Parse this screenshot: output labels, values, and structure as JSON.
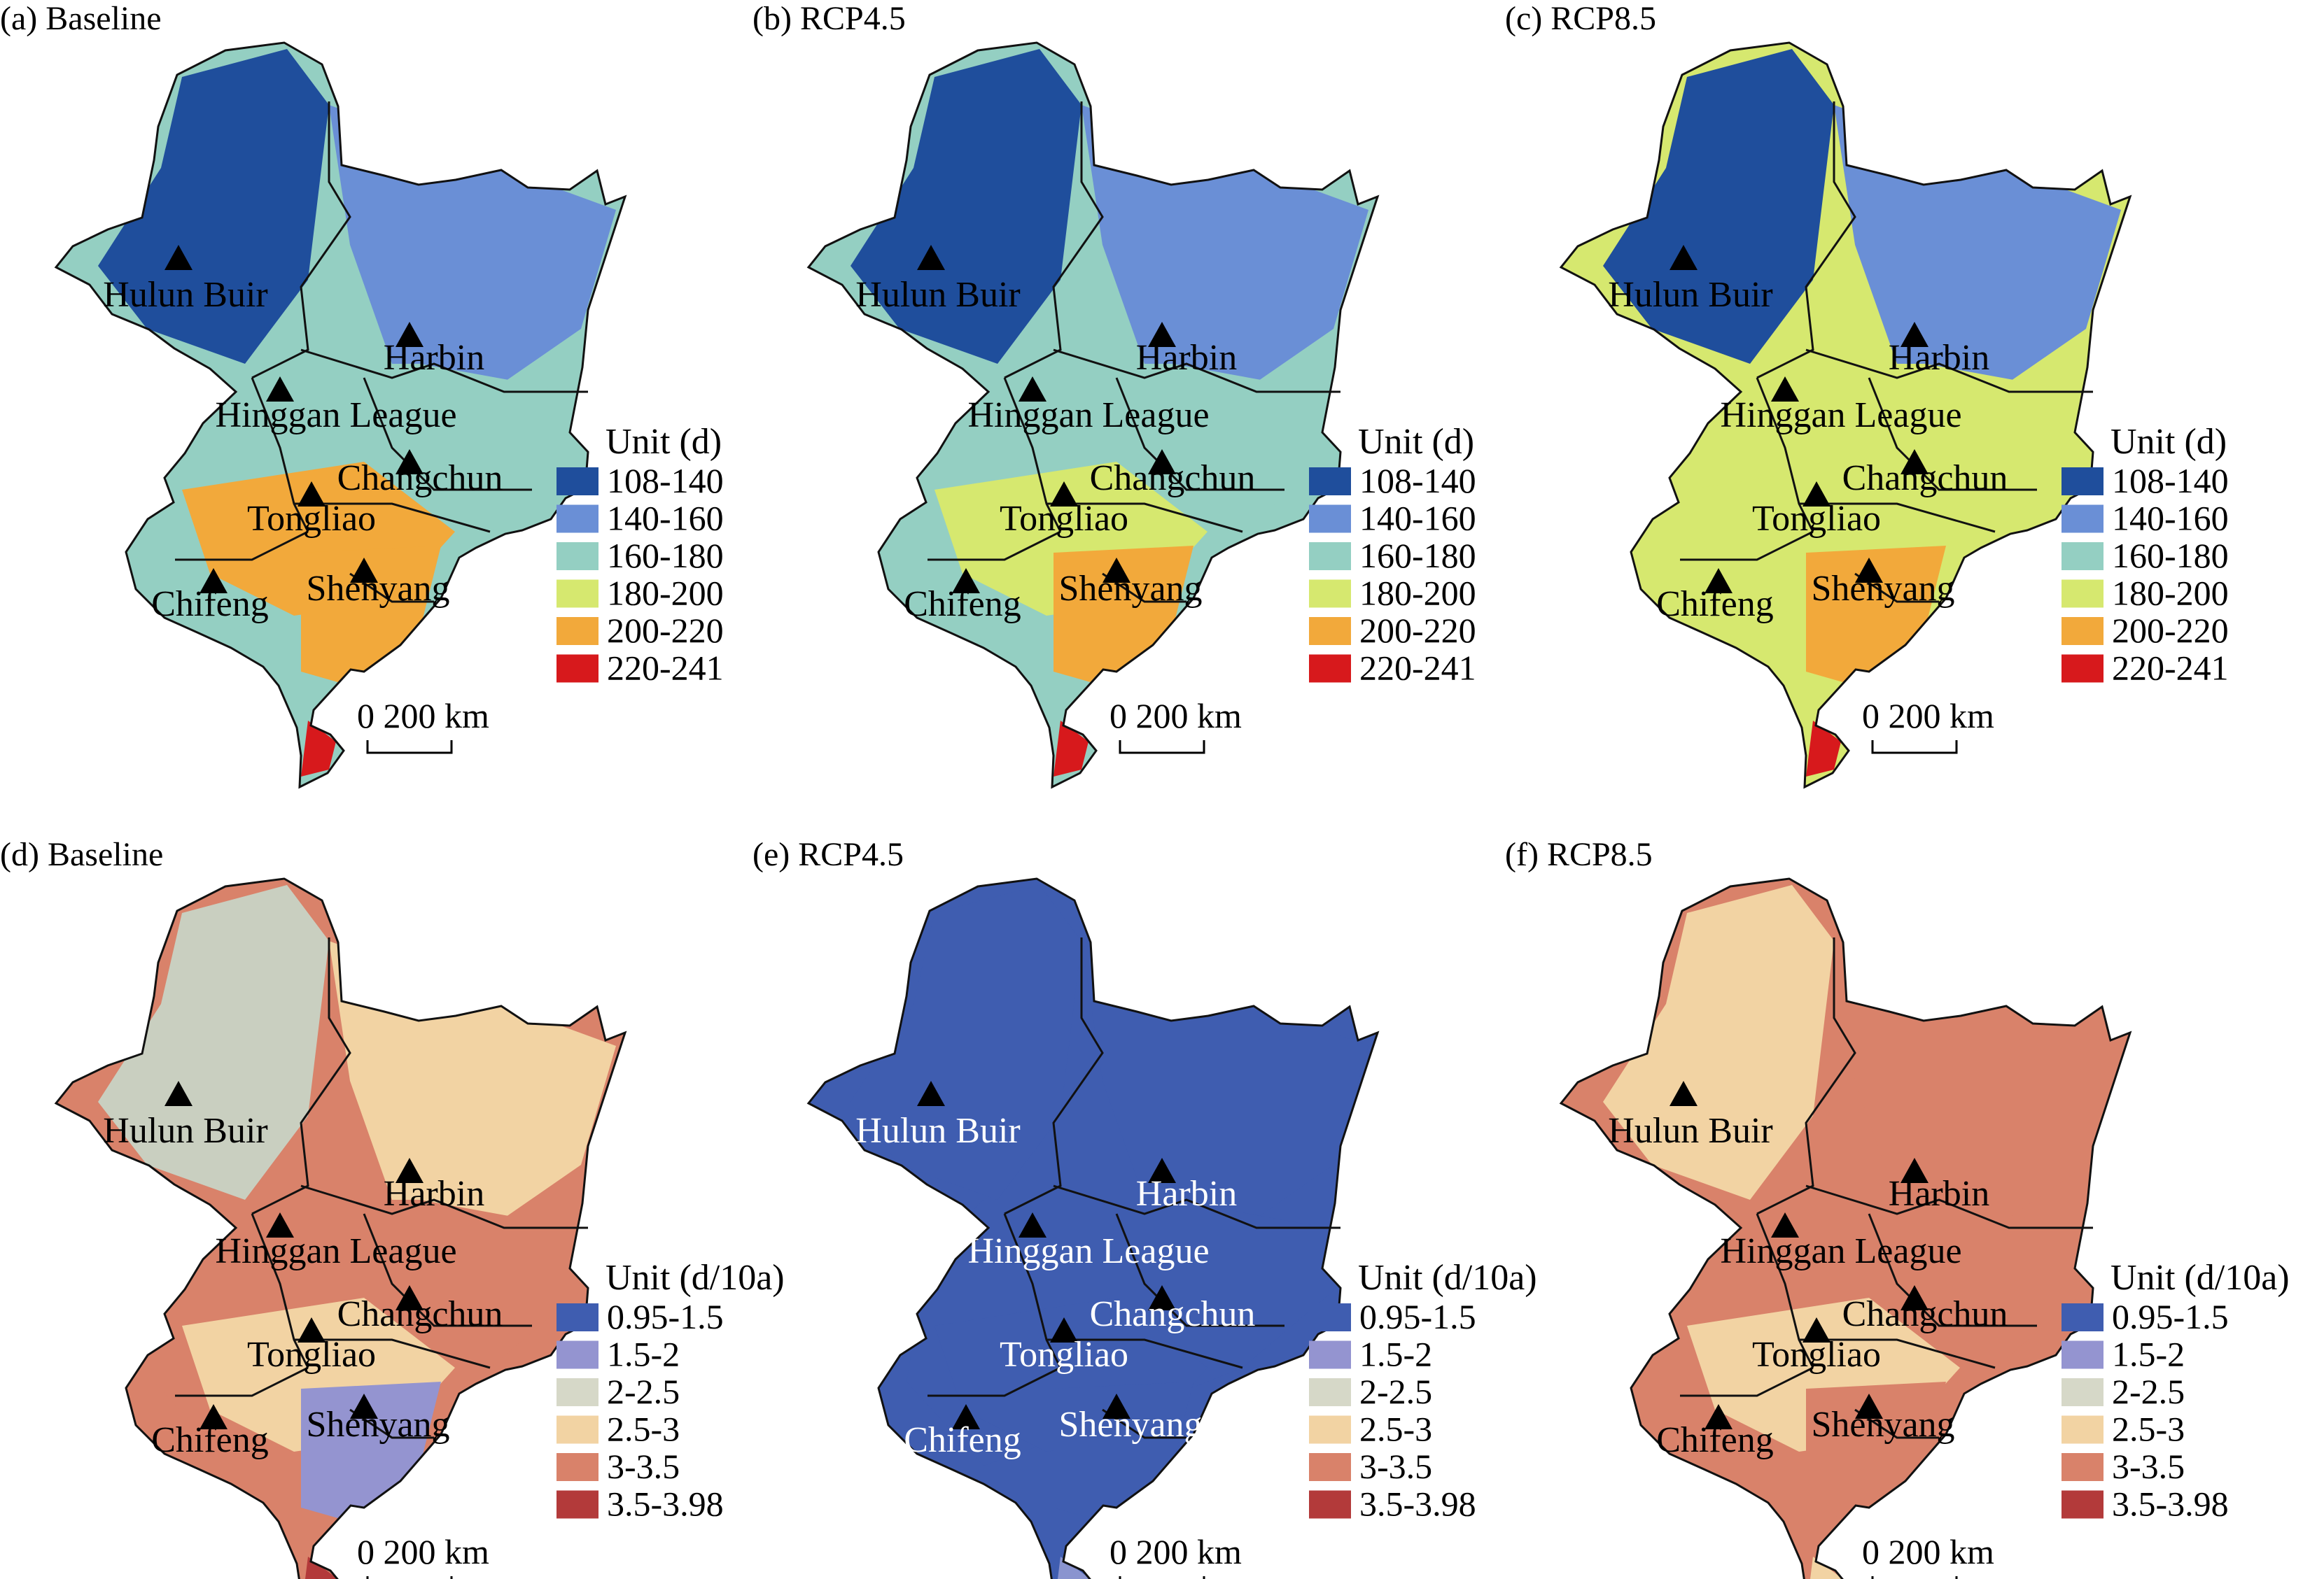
{
  "figure": {
    "panels": [
      {
        "id": "a",
        "title": "(a) Baseline",
        "legend": "days",
        "regions": [
          "#1f4e9c",
          "#6a8fd6",
          "#94cfc2",
          "#f2a93b",
          "#f2a93b",
          "#d7191c"
        ]
      },
      {
        "id": "b",
        "title": "(b) RCP4.5",
        "legend": "days",
        "regions": [
          "#1f4e9c",
          "#6a8fd6",
          "#94cfc2",
          "#d6e86f",
          "#f2a93b",
          "#d7191c"
        ]
      },
      {
        "id": "c",
        "title": "(c) RCP8.5",
        "legend": "days",
        "regions": [
          "#1f4e9c",
          "#6a8fd6",
          "#d6e86f",
          "#d6e86f",
          "#f2a93b",
          "#d7191c"
        ]
      },
      {
        "id": "d",
        "title": "(d) Baseline",
        "legend": "trend",
        "regions": [
          "#c9cfc0",
          "#f2d3a3",
          "#d9826a",
          "#f2d3a3",
          "#9494d0",
          "#b33a3a"
        ]
      },
      {
        "id": "e",
        "title": "(e) RCP4.5",
        "legend": "trend",
        "regions": [
          "#3f5db0",
          "#3f5db0",
          "#3f5db0",
          "#3f5db0",
          "#3f5db0",
          "#8a94cf"
        ]
      },
      {
        "id": "f",
        "title": "(f) RCP8.5",
        "legend": "trend",
        "regions": [
          "#f2d3a3",
          "#d9826a",
          "#d9826a",
          "#f2d3a3",
          "#d9826a",
          "#f2d3a3"
        ]
      }
    ],
    "cities": [
      "Hulun Buir",
      "Harbin",
      "Hinggan League",
      "Changchun",
      "Tongliao",
      "Chifeng",
      "Shenyang"
    ],
    "legends": {
      "days": {
        "title": "Unit (d)",
        "items": [
          {
            "label": "108-140",
            "color": "#1f4e9c"
          },
          {
            "label": "140-160",
            "color": "#6a8fd6"
          },
          {
            "label": "160-180",
            "color": "#94cfc2"
          },
          {
            "label": "180-200",
            "color": "#d6e86f"
          },
          {
            "label": "200-220",
            "color": "#f2a93b"
          },
          {
            "label": "220-241",
            "color": "#d7191c"
          }
        ]
      },
      "trend": {
        "title": "Unit (d/10a)",
        "items": [
          {
            "label": "0.95-1.5",
            "color": "#3f5db0"
          },
          {
            "label": "1.5-2",
            "color": "#9494d0"
          },
          {
            "label": "2-2.5",
            "color": "#d6d8c8"
          },
          {
            "label": "2.5-3",
            "color": "#f2d3a3"
          },
          {
            "label": "3-3.5",
            "color": "#d9826a"
          },
          {
            "label": "3.5-3.98",
            "color": "#b33a3a"
          }
        ]
      }
    },
    "scale_bar": {
      "text": "0 200 km"
    }
  }
}
